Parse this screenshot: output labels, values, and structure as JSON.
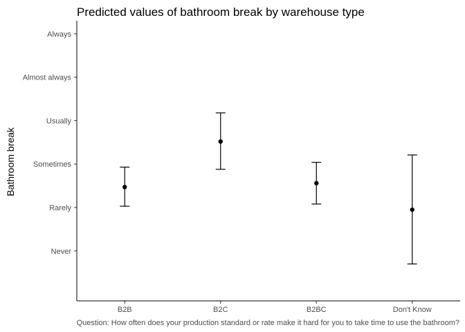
{
  "chart_data": {
    "type": "errorbar",
    "title": "Predicted values of bathroom break by warehouse type",
    "xlabel": "Question: How often does your production standard or rate make it hard for you to take time to use the bathroom?",
    "ylabel": "Bathroom break",
    "categories": [
      "B2B",
      "B2C",
      "B2BC",
      "Don't Know"
    ],
    "y_ticks": [
      {
        "value": 1,
        "label": "Never"
      },
      {
        "value": 2,
        "label": "Rarely"
      },
      {
        "value": 3,
        "label": "Sometimes"
      },
      {
        "value": 4,
        "label": "Usually"
      },
      {
        "value": 5,
        "label": "Almost always"
      },
      {
        "value": 6,
        "label": "Always"
      }
    ],
    "ylim": [
      -0.15,
      6.3
    ],
    "points": [
      {
        "category": "B2B",
        "estimate": 2.47,
        "lower": 2.03,
        "upper": 2.93
      },
      {
        "category": "B2C",
        "estimate": 3.52,
        "lower": 2.88,
        "upper": 4.18
      },
      {
        "category": "B2BC",
        "estimate": 2.56,
        "lower": 2.08,
        "upper": 3.04
      },
      {
        "category": "Don't Know",
        "estimate": 1.95,
        "lower": 0.7,
        "upper": 3.21
      }
    ],
    "grid": false,
    "legend": "none"
  }
}
